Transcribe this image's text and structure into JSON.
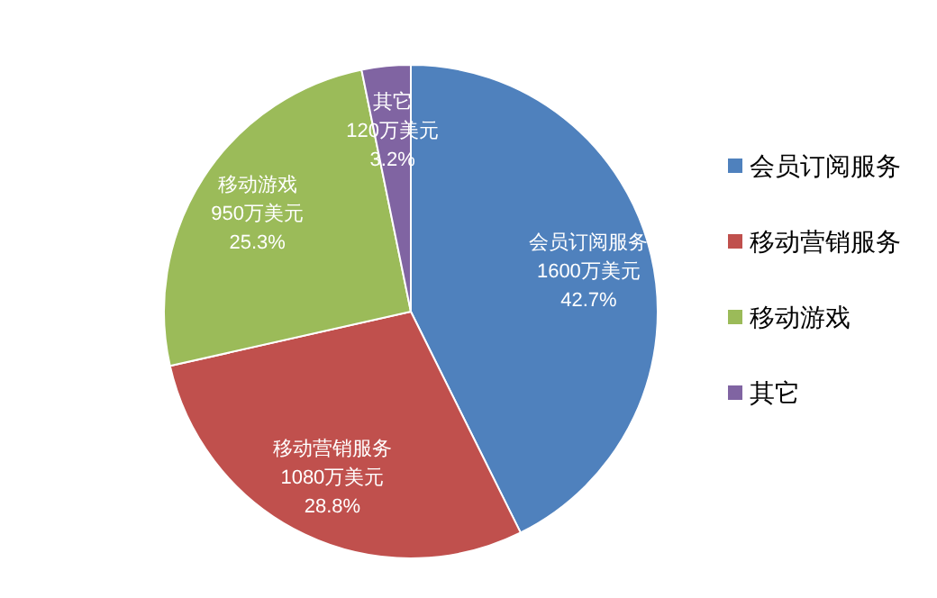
{
  "chart_data": {
    "type": "pie",
    "categories": [
      "会员订阅服务",
      "移动营销服务",
      "移动游戏",
      "其它"
    ],
    "values": [
      1600,
      1080,
      950,
      120
    ],
    "colors": [
      "#4f81bd",
      "#c0504d",
      "#9bbb59",
      "#8064a2"
    ],
    "value_labels": [
      "1600万美元\n42.7%",
      "1080万美元\n28.8%",
      "950万美元\n25.3%",
      "120万美元\n3.2%"
    ],
    "legend": "right"
  }
}
